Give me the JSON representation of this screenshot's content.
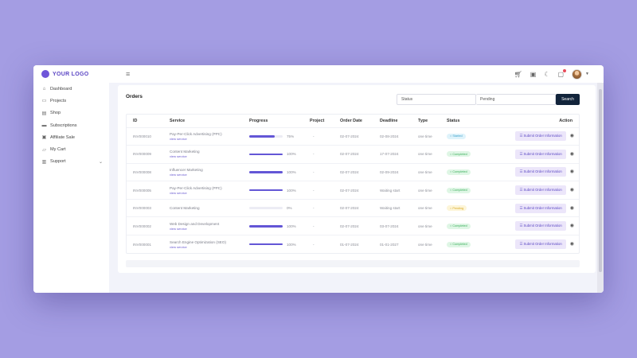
{
  "brand": {
    "logo_text": "YOUR LOGO",
    "accent": "#6f56d9"
  },
  "topbar": {
    "menu_icon": "hamburger-icon",
    "icons": [
      "cart-icon",
      "archive-icon",
      "moon-icon",
      "notification-icon"
    ]
  },
  "sidebar": {
    "items": [
      {
        "label": "Dashboard",
        "icon": "dashboard-icon"
      },
      {
        "label": "Projects",
        "icon": "folder-icon"
      },
      {
        "label": "Shop",
        "icon": "shop-icon"
      },
      {
        "label": "Subscriptions",
        "icon": "card-icon"
      },
      {
        "label": "Affiliate Sale",
        "icon": "sale-icon"
      },
      {
        "label": "My Cart",
        "icon": "cart-icon"
      },
      {
        "label": "Support",
        "icon": "support-icon"
      }
    ]
  },
  "orders": {
    "title": "Orders",
    "filter_status_placeholder": "Status",
    "filter_pending_value": "Pending",
    "search_label": "Search",
    "columns": [
      "ID",
      "Service",
      "Progress",
      "Project",
      "Order Date",
      "Deadline",
      "Type",
      "Status",
      "Action"
    ],
    "rows": [
      {
        "id": "INV000010",
        "service": "Pay-Per-Click Advertising (PPC)",
        "link": "view service",
        "progress_label": "75%",
        "progress": 75,
        "project": "-",
        "order_date": "02-07-2024",
        "deadline": "02-08-2024",
        "type": "one time",
        "status": "Started",
        "status_bg": "#dff3fb",
        "status_fg": "#3aa0c9",
        "action": "Submit Order Information"
      },
      {
        "id": "INV000009",
        "service": "Content Marketing",
        "link": "view service",
        "progress_label": "100%",
        "progress": 100,
        "project": "-",
        "order_date": "02-07-2024",
        "deadline": "17-07-2024",
        "type": "one time",
        "status": "Completed",
        "status_bg": "#dff6e5",
        "status_fg": "#3caf5c",
        "action": "Submit Order Information"
      },
      {
        "id": "INV000008",
        "service": "Influencer Marketing",
        "link": "view service",
        "progress_label": "100%",
        "progress": 100,
        "project": "-",
        "order_date": "02-07-2024",
        "deadline": "02-09-2024",
        "type": "one time",
        "status": "Completed",
        "status_bg": "#dff6e5",
        "status_fg": "#3caf5c",
        "action": "Submit Order Information"
      },
      {
        "id": "INV000005",
        "service": "Pay-Per-Click Advertising (PPC)",
        "link": "view service",
        "progress_label": "100%",
        "progress": 100,
        "project": "-",
        "order_date": "02-07-2024",
        "deadline": "Waiting start",
        "type": "one time",
        "status": "Completed",
        "status_bg": "#dff6e5",
        "status_fg": "#3caf5c",
        "action": "Submit Order Information"
      },
      {
        "id": "INV000003",
        "service": "Content Marketing",
        "link": "",
        "progress_label": "0%",
        "progress": 0,
        "project": "-",
        "order_date": "02-07-2024",
        "deadline": "Waiting start",
        "type": "one time",
        "status": "Pending",
        "status_bg": "#fdf5d8",
        "status_fg": "#d7a822",
        "action": "Submit Order Information"
      },
      {
        "id": "INV000002",
        "service": "Web Design and Development",
        "link": "view service",
        "progress_label": "100%",
        "progress": 100,
        "project": "-",
        "order_date": "02-07-2024",
        "deadline": "03-07-2024",
        "type": "one time",
        "status": "Completed",
        "status_bg": "#dff6e5",
        "status_fg": "#3caf5c",
        "action": "Submit Order Information"
      },
      {
        "id": "INV000001",
        "service": "Search Engine Optimization (SEO)",
        "link": "view service",
        "progress_label": "100%",
        "progress": 100,
        "project": "-",
        "order_date": "01-07-2024",
        "deadline": "01-01-2027",
        "type": "one time",
        "status": "Completed",
        "status_bg": "#dff6e5",
        "status_fg": "#3caf5c",
        "action": "Submit Order Information"
      }
    ]
  }
}
